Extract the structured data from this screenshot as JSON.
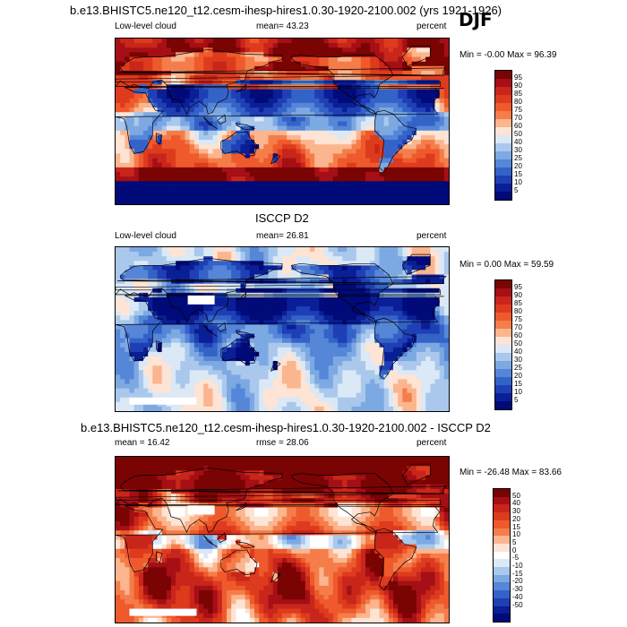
{
  "season": "DJF",
  "panels": [
    {
      "title": "b.e13.BHISTC5.ne120_t12.cesm-ihesp-hires1.0.30-1920-2100.002 (yrs 1921-1926)",
      "left_label": "Low-level cloud",
      "center_label": "mean=  43.23",
      "right_label": "percent",
      "minmax": "Min =  -0.00 Max =  96.39",
      "scheme": "model",
      "levels": [
        "95",
        "90",
        "85",
        "80",
        "75",
        "70",
        "60",
        "50",
        "40",
        "30",
        "25",
        "20",
        "15",
        "10",
        "5"
      ]
    },
    {
      "title": "ISCCP D2",
      "left_label": "Low-level cloud",
      "center_label": "mean=  26.81",
      "right_label": "percent",
      "minmax": "Min =   0.00 Max =  59.59",
      "scheme": "obs",
      "levels": [
        "95",
        "90",
        "85",
        "80",
        "75",
        "70",
        "60",
        "50",
        "40",
        "30",
        "25",
        "20",
        "15",
        "10",
        "5"
      ]
    },
    {
      "title": "b.e13.BHISTC5.ne120_t12.cesm-ihesp-hires1.0.30-1920-2100.002 - ISCCP D2",
      "left_label": "mean =  16.42",
      "center_label": "rmse =  28.06",
      "right_label": "percent",
      "minmax": "Min = -26.48 Max =  83.66",
      "scheme": "diff",
      "levels": [
        "50",
        "40",
        "30",
        "20",
        "15",
        "10",
        "5",
        "0",
        "-5",
        "-10",
        "-15",
        "-20",
        "-30",
        "-40",
        "-50"
      ]
    }
  ],
  "colors": {
    "seq": [
      "#7a0403",
      "#a50f15",
      "#c8261a",
      "#de3b1e",
      "#ee5a2c",
      "#f57d4a",
      "#fbb58f",
      "#fde4d4",
      "#dbe8f6",
      "#a9c8ec",
      "#7da9e3",
      "#5686d8",
      "#3463c8",
      "#1f3fb5",
      "#0a1e96",
      "#000a78"
    ],
    "diff": [
      "#7a0403",
      "#a50f15",
      "#c8261a",
      "#de3b1e",
      "#ee5a2c",
      "#f57d4a",
      "#fbb58f",
      "#fde4d4",
      "#ffffff",
      "#dbe8f6",
      "#a9c8ec",
      "#7da9e3",
      "#5686d8",
      "#3463c8",
      "#1f3fb5",
      "#0a1e96",
      "#000a78"
    ]
  }
}
